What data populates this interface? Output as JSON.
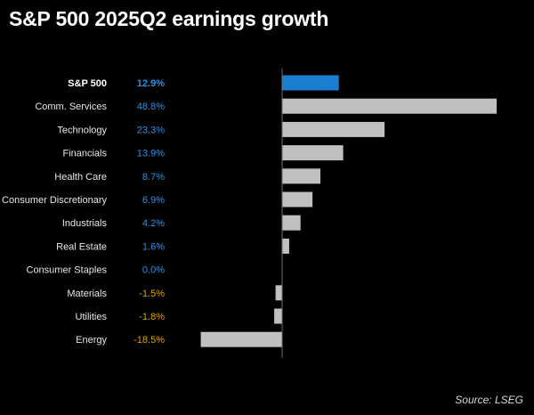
{
  "title": "S&P 500 2025Q2 earnings growth",
  "source": "Source: LSEG",
  "colors": {
    "highlight_bar": "#1a7fd1",
    "bar": "#c0c0c0",
    "positive_value": "#2f8fe0",
    "negative_value": "#e0a000",
    "axis": "#6e6e6e"
  },
  "chart_data": {
    "type": "bar",
    "orientation": "horizontal",
    "title": "S&P 500 2025Q2 earnings growth",
    "xlabel": "",
    "ylabel": "",
    "unit": "%",
    "xlim": [
      -18.5,
      48.8
    ],
    "grid": false,
    "legend": "none",
    "categories": [
      "S&P 500",
      "Comm. Services",
      "Technology",
      "Financials",
      "Health Care",
      "Consumer Discretionary",
      "Industrials",
      "Real Estate",
      "Consumer Staples",
      "Materials",
      "Utilities",
      "Energy"
    ],
    "values": [
      12.9,
      48.8,
      23.3,
      13.9,
      8.7,
      6.9,
      4.2,
      1.6,
      0.0,
      -1.5,
      -1.8,
      -18.5
    ],
    "value_labels": [
      "12.9%",
      "48.8%",
      "23.3%",
      "13.9%",
      "8.7%",
      "6.9%",
      "4.2%",
      "1.6%",
      "0.0%",
      "-1.5%",
      "-1.8%",
      "-18.5%"
    ],
    "highlight": "S&P 500"
  }
}
